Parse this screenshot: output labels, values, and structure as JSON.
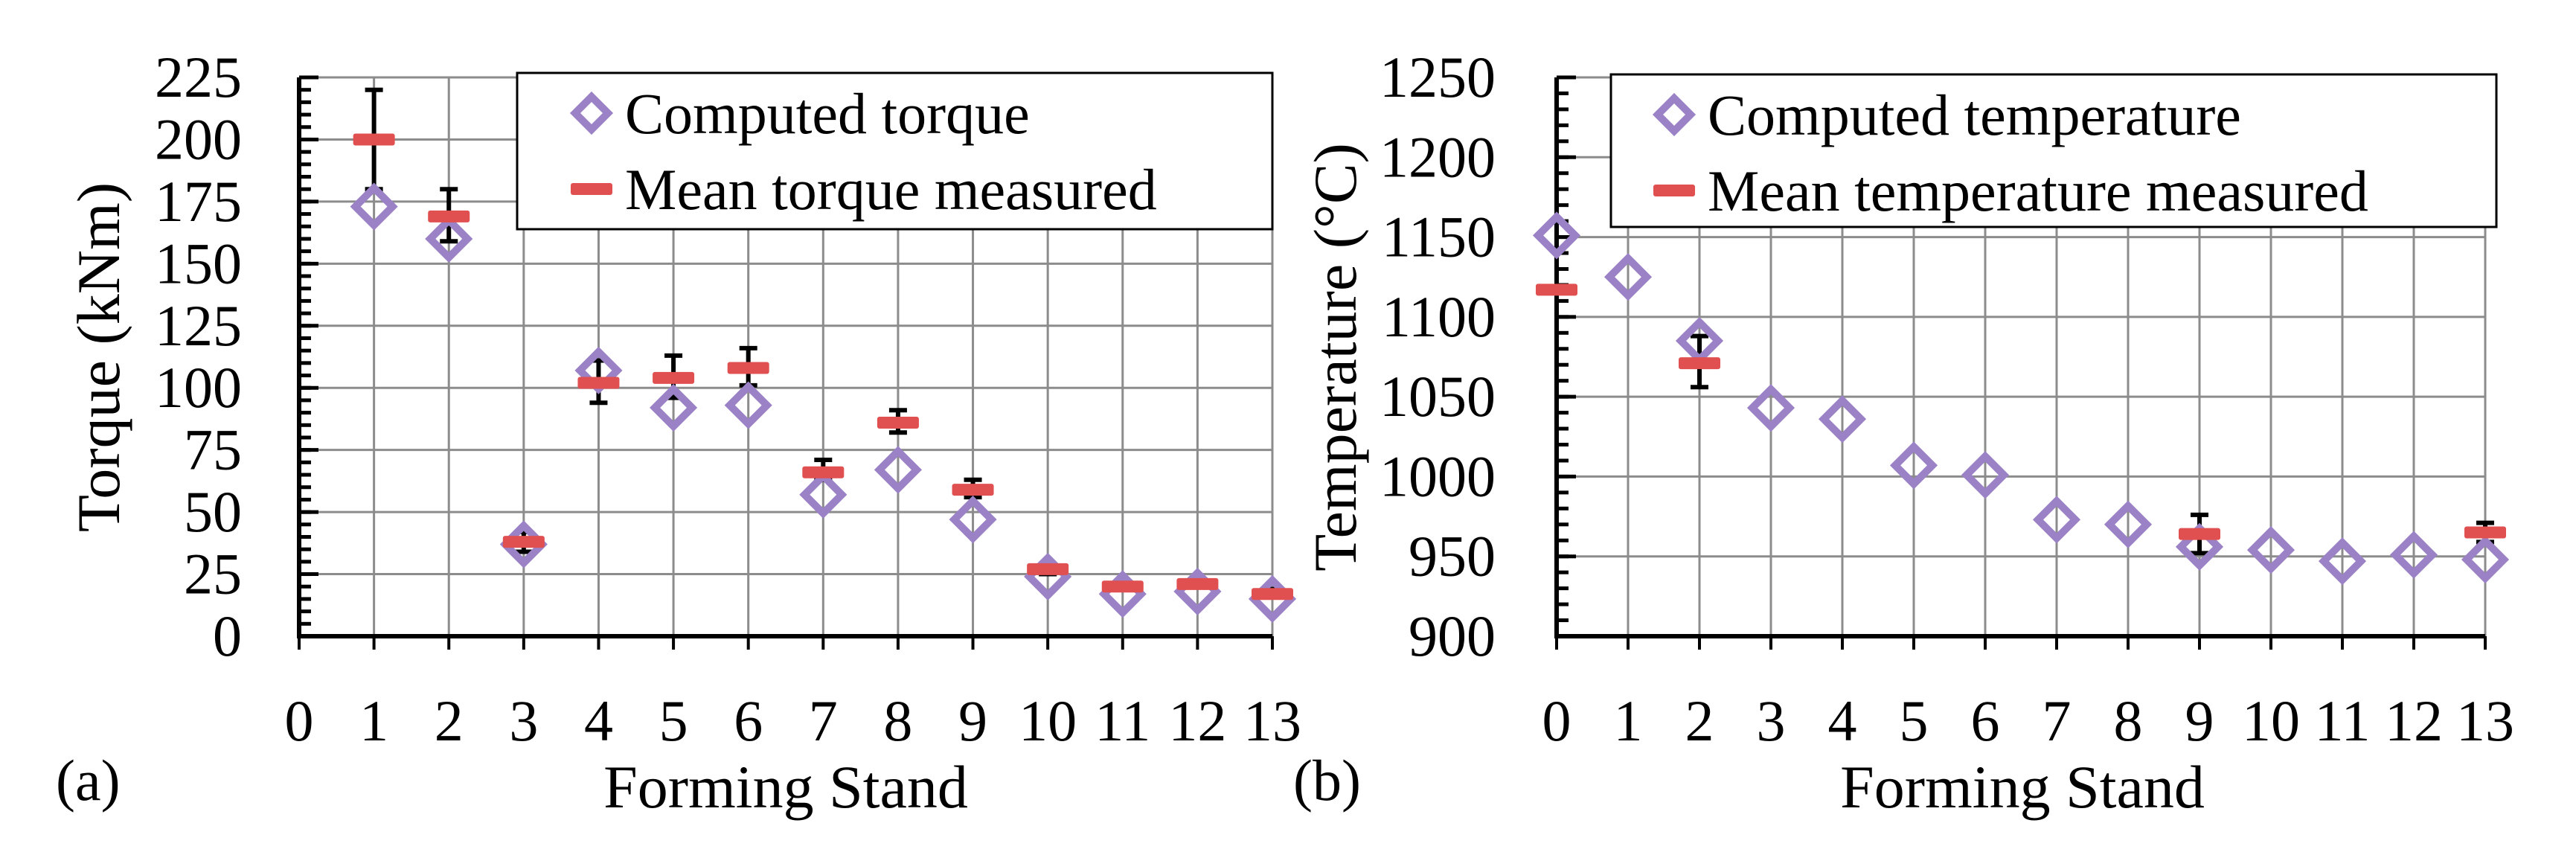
{
  "colors": {
    "computed": "#9b82c6",
    "measured": "#e05050",
    "error_bar": "#000000",
    "grid": "#8c8c8c",
    "axis": "#000000"
  },
  "chart_data": [
    {
      "type": "scatter",
      "panel_label": "(a)",
      "xlabel": "Forming Stand",
      "ylabel": "Torque (kNm)",
      "xlim": [
        0,
        13
      ],
      "ylim": [
        0,
        225
      ],
      "x_ticks": [
        0,
        1,
        2,
        3,
        4,
        5,
        6,
        7,
        8,
        9,
        10,
        11,
        12,
        13
      ],
      "x_tick_labels": [
        "0",
        "1",
        "2",
        "3",
        "4",
        "5",
        "6",
        "7",
        "8",
        "9",
        "10",
        "11",
        "12",
        "13"
      ],
      "y_ticks": [
        0,
        25,
        50,
        75,
        100,
        125,
        150,
        175,
        200,
        225
      ],
      "y_tick_labels": [
        "0",
        "25",
        "50",
        "75",
        "100",
        "125",
        "150",
        "175",
        "200",
        "225"
      ],
      "y_minor_step": 5,
      "grid": true,
      "legend_position": "top-right",
      "series": [
        {
          "name": "Computed torque",
          "marker": "diamond",
          "points": [
            {
              "x": 1,
              "y": 173
            },
            {
              "x": 2,
              "y": 160
            },
            {
              "x": 3,
              "y": 37
            },
            {
              "x": 4,
              "y": 107
            },
            {
              "x": 5,
              "y": 92
            },
            {
              "x": 6,
              "y": 93
            },
            {
              "x": 7,
              "y": 57
            },
            {
              "x": 8,
              "y": 67
            },
            {
              "x": 9,
              "y": 47
            },
            {
              "x": 10,
              "y": 24
            },
            {
              "x": 11,
              "y": 17
            },
            {
              "x": 12,
              "y": 18
            },
            {
              "x": 13,
              "y": 15
            }
          ]
        },
        {
          "name": "Mean torque measured",
          "marker": "dash",
          "points": [
            {
              "x": 1,
              "y": 200,
              "err_low": 180,
              "err_high": 220
            },
            {
              "x": 2,
              "y": 169,
              "err_low": 159,
              "err_high": 180
            },
            {
              "x": 3,
              "y": 38,
              "err_low": 34,
              "err_high": 42
            },
            {
              "x": 4,
              "y": 102,
              "err_low": 94,
              "err_high": 111
            },
            {
              "x": 5,
              "y": 104,
              "err_low": 96,
              "err_high": 113
            },
            {
              "x": 6,
              "y": 108,
              "err_low": 101,
              "err_high": 116
            },
            {
              "x": 7,
              "y": 66,
              "err_low": 63,
              "err_high": 71
            },
            {
              "x": 8,
              "y": 86,
              "err_low": 82,
              "err_high": 91
            },
            {
              "x": 9,
              "y": 59,
              "err_low": 56,
              "err_high": 63
            },
            {
              "x": 10,
              "y": 27,
              "err_low": 25,
              "err_high": 29
            },
            {
              "x": 11,
              "y": 20,
              "err_low": 19,
              "err_high": 22
            },
            {
              "x": 12,
              "y": 21,
              "err_low": 20,
              "err_high": 23
            },
            {
              "x": 13,
              "y": 17,
              "err_low": 16,
              "err_high": 19
            }
          ]
        }
      ]
    },
    {
      "type": "scatter",
      "panel_label": "(b)",
      "xlabel": "Forming Stand",
      "ylabel": "Temperature (°C)",
      "xlim": [
        0,
        13
      ],
      "ylim": [
        900,
        1250
      ],
      "x_ticks": [
        0,
        1,
        2,
        3,
        4,
        5,
        6,
        7,
        8,
        9,
        10,
        11,
        12,
        13
      ],
      "x_tick_labels": [
        "0",
        "1",
        "2",
        "3",
        "4",
        "5",
        "6",
        "7",
        "8",
        "9",
        "10",
        "11",
        "12",
        "13"
      ],
      "y_ticks": [
        900,
        950,
        1000,
        1050,
        1100,
        1150,
        1200,
        1250
      ],
      "y_tick_labels": [
        "900",
        "950",
        "1000",
        "1050",
        "1100",
        "1150",
        "1200",
        "1250"
      ],
      "y_minor_step": 10,
      "grid": true,
      "legend_position": "top-right",
      "series": [
        {
          "name": "Computed temperature",
          "marker": "diamond",
          "points": [
            {
              "x": 0,
              "y": 1151
            },
            {
              "x": 1,
              "y": 1125
            },
            {
              "x": 2,
              "y": 1085
            },
            {
              "x": 3,
              "y": 1043
            },
            {
              "x": 4,
              "y": 1036
            },
            {
              "x": 5,
              "y": 1007
            },
            {
              "x": 6,
              "y": 1001
            },
            {
              "x": 7,
              "y": 973
            },
            {
              "x": 8,
              "y": 970
            },
            {
              "x": 9,
              "y": 956
            },
            {
              "x": 10,
              "y": 954
            },
            {
              "x": 11,
              "y": 947
            },
            {
              "x": 12,
              "y": 951
            },
            {
              "x": 13,
              "y": 948
            }
          ]
        },
        {
          "name": "Mean temperature measured",
          "marker": "dash",
          "points": [
            {
              "x": 0,
              "y": 1117,
              "err_low": 1117,
              "err_high": 1117
            },
            {
              "x": 2,
              "y": 1071,
              "err_low": 1056,
              "err_high": 1088
            },
            {
              "x": 9,
              "y": 964,
              "err_low": 952,
              "err_high": 976
            },
            {
              "x": 13,
              "y": 965,
              "err_low": 959,
              "err_high": 971
            }
          ]
        }
      ]
    }
  ]
}
